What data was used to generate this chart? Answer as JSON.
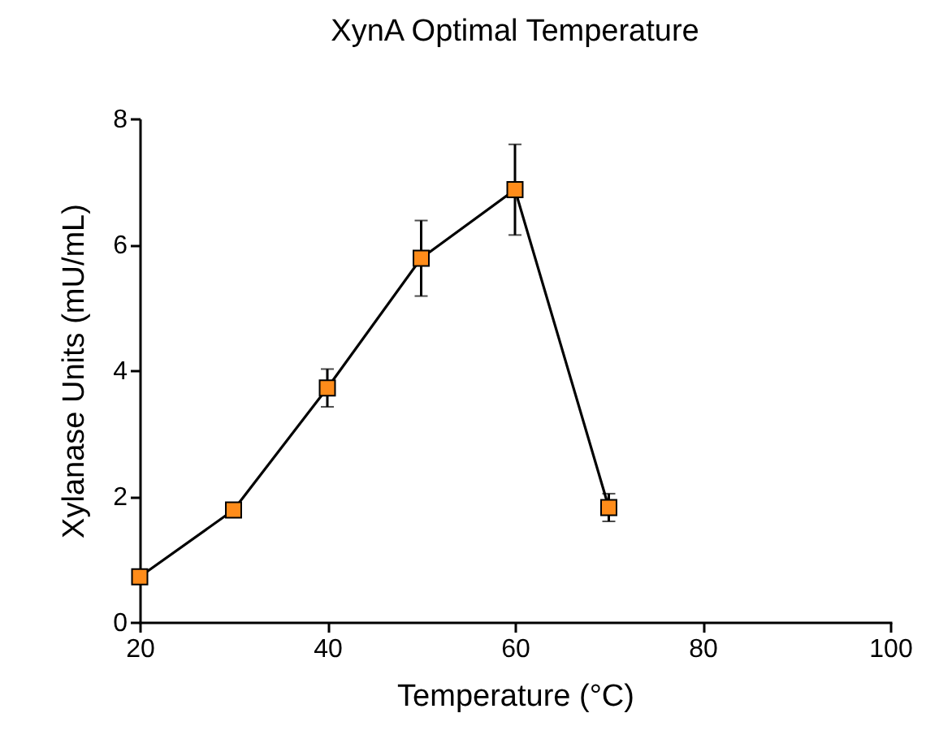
{
  "chart_data": {
    "type": "line",
    "title": "XynA Optimal Temperature",
    "xlabel": "Temperature (°C)",
    "ylabel": "Xylanase Units (mU/mL)",
    "x": [
      20,
      30,
      40,
      50,
      60,
      70
    ],
    "series": [
      {
        "color": "#ff8c1a",
        "values": [
          0.72,
          1.78,
          3.72,
          5.78,
          6.87,
          1.82
        ],
        "errors": [
          0.1,
          null,
          0.3,
          0.6,
          0.72,
          0.22
        ]
      }
    ],
    "xlim": [
      20,
      100
    ],
    "xticks": [
      20,
      40,
      60,
      80,
      100
    ],
    "ylim": [
      0,
      8
    ],
    "yticks": [
      0,
      2,
      4,
      6,
      8
    ],
    "grid": false,
    "marker": "square",
    "line_style": "solid"
  }
}
